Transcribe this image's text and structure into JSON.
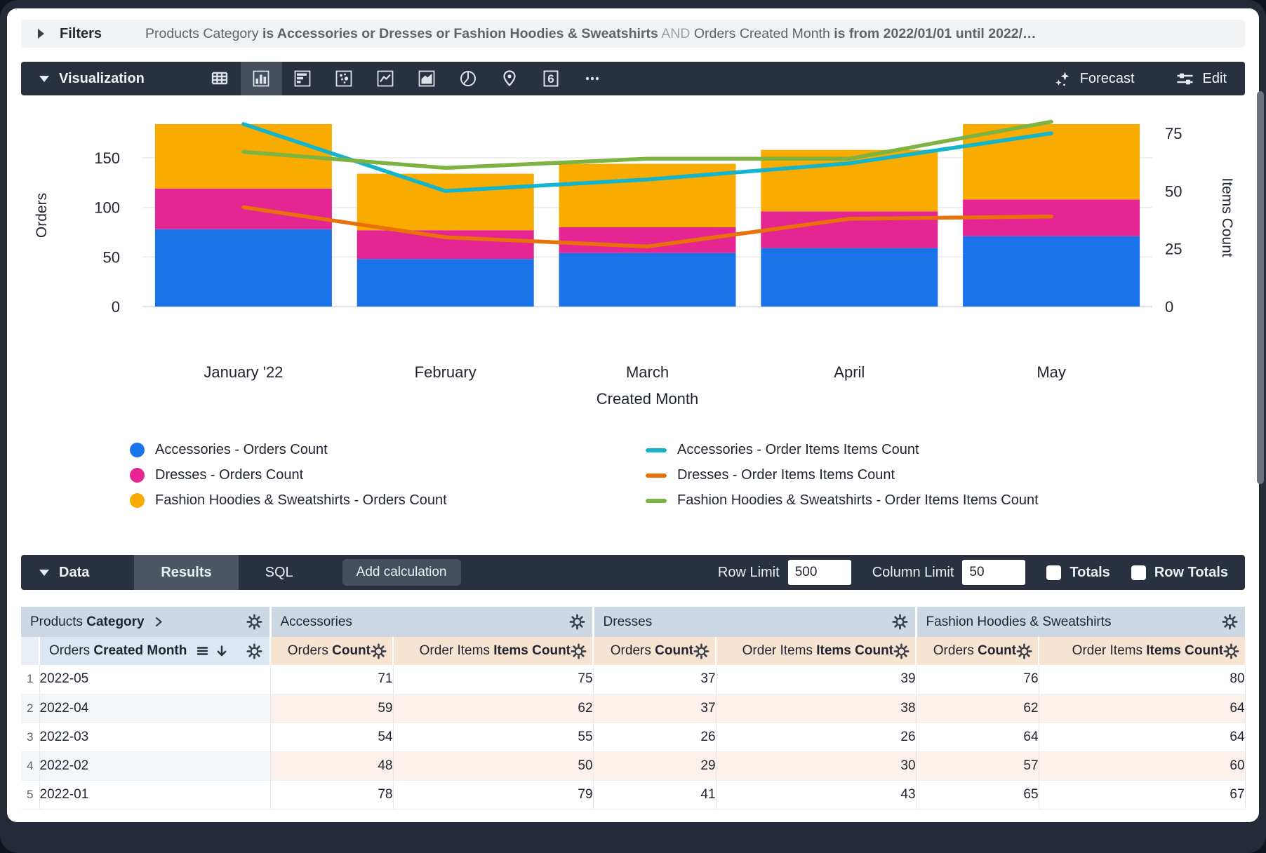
{
  "filters": {
    "label": "Filters",
    "summary_parts": [
      {
        "text": "Products Category",
        "style": "plain"
      },
      {
        "text": "is Accessories or Dresses or Fashion Hoodies & Sweatshirts",
        "style": "strong"
      },
      {
        "text": "AND",
        "style": "and"
      },
      {
        "text": "Orders Created Month",
        "style": "plain"
      },
      {
        "text": "is from 2022/01/01 until 2022/…",
        "style": "strong"
      }
    ]
  },
  "visualization": {
    "label": "Visualization",
    "chart_type_icons": [
      {
        "name": "table",
        "active": false
      },
      {
        "name": "column",
        "active": true
      },
      {
        "name": "bar",
        "active": false
      },
      {
        "name": "scatter",
        "active": false
      },
      {
        "name": "line",
        "active": false
      },
      {
        "name": "area",
        "active": false
      },
      {
        "name": "pie",
        "active": false
      },
      {
        "name": "map",
        "active": false
      },
      {
        "name": "single-value",
        "active": false
      },
      {
        "name": "more",
        "active": false
      }
    ],
    "single_value_glyph": "6",
    "forecast_label": "Forecast",
    "edit_label": "Edit"
  },
  "chart_data": {
    "type": "combo-stacked-column-with-lines",
    "categories": [
      "January '22",
      "February",
      "March",
      "April",
      "May"
    ],
    "x_axis_label": "Created Month",
    "left_axis": {
      "label": "Orders",
      "ticks": [
        0,
        50,
        100,
        150
      ],
      "range": [
        0,
        203
      ]
    },
    "right_axis": {
      "label": "Items Count",
      "ticks": [
        0,
        25,
        50,
        75
      ],
      "range": [
        0,
        87
      ]
    },
    "grid": true,
    "legend_position": "bottom",
    "bar_series": [
      {
        "name": "Accessories - Orders Count",
        "color": "#1A73E8",
        "values": [
          78,
          48,
          54,
          59,
          71
        ]
      },
      {
        "name": "Dresses - Orders Count",
        "color": "#E52592",
        "values": [
          41,
          29,
          26,
          37,
          37
        ]
      },
      {
        "name": "Fashion Hoodies & Sweatshirts - Orders Count",
        "color": "#F9AB00",
        "values": [
          65,
          57,
          64,
          62,
          76
        ]
      }
    ],
    "line_series": [
      {
        "name": "Accessories - Order Items Items Count",
        "color": "#12B5CB",
        "values": [
          79,
          50,
          55,
          62,
          75
        ]
      },
      {
        "name": "Dresses - Order Items Items Count",
        "color": "#E8710A",
        "values": [
          43,
          30,
          26,
          38,
          39
        ]
      },
      {
        "name": "Fashion Hoodies & Sweatshirts - Order Items Items Count",
        "color": "#7CB342",
        "values": [
          67,
          60,
          64,
          64,
          80
        ]
      }
    ]
  },
  "data_panel": {
    "label": "Data",
    "tabs": [
      {
        "label": "Results",
        "active": true
      },
      {
        "label": "SQL",
        "active": false
      }
    ],
    "add_calculation_label": "Add calculation",
    "row_limit_label": "Row Limit",
    "row_limit_value": "500",
    "column_limit_label": "Column Limit",
    "column_limit_value": "50",
    "totals_label": "Totals",
    "totals_checked": false,
    "row_totals_label": "Row Totals",
    "row_totals_checked": false
  },
  "results_table": {
    "dimension_group_header": {
      "view": "Products",
      "field": "Category"
    },
    "measure_group_headers": [
      "Accessories",
      "Dresses",
      "Fashion Hoodies & Sweatshirts"
    ],
    "dimension_header": {
      "view": "Orders",
      "field": "Created Month"
    },
    "measure_headers": [
      {
        "view": "Orders",
        "field": "Count"
      },
      {
        "view": "Order Items",
        "field": "Items Count"
      },
      {
        "view": "Orders",
        "field": "Count"
      },
      {
        "view": "Order Items",
        "field": "Items Count"
      },
      {
        "view": "Orders",
        "field": "Count"
      },
      {
        "view": "Order Items",
        "field": "Items Count"
      }
    ],
    "rows": [
      {
        "index": "1",
        "dimension": "2022-05",
        "measures": [
          71,
          75,
          37,
          39,
          76,
          80
        ]
      },
      {
        "index": "2",
        "dimension": "2022-04",
        "measures": [
          59,
          62,
          37,
          38,
          62,
          64
        ]
      },
      {
        "index": "3",
        "dimension": "2022-03",
        "measures": [
          54,
          55,
          26,
          26,
          64,
          64
        ]
      },
      {
        "index": "4",
        "dimension": "2022-02",
        "measures": [
          48,
          50,
          29,
          30,
          57,
          60
        ]
      },
      {
        "index": "5",
        "dimension": "2022-01",
        "measures": [
          78,
          79,
          41,
          43,
          65,
          67
        ]
      }
    ]
  },
  "colors": {
    "frame": "#242b37",
    "toolbar": "#293140",
    "accent_blue": "#1A73E8",
    "accent_magenta": "#E52592",
    "accent_amber": "#F9AB00",
    "accent_cyan": "#12B5CB",
    "accent_orange": "#E8710A",
    "accent_green": "#7CB342",
    "header_group_bg": "#ccd9e5",
    "header_dimension_bg": "#dce7f1",
    "header_measure_bg": "#f6e3d1"
  }
}
